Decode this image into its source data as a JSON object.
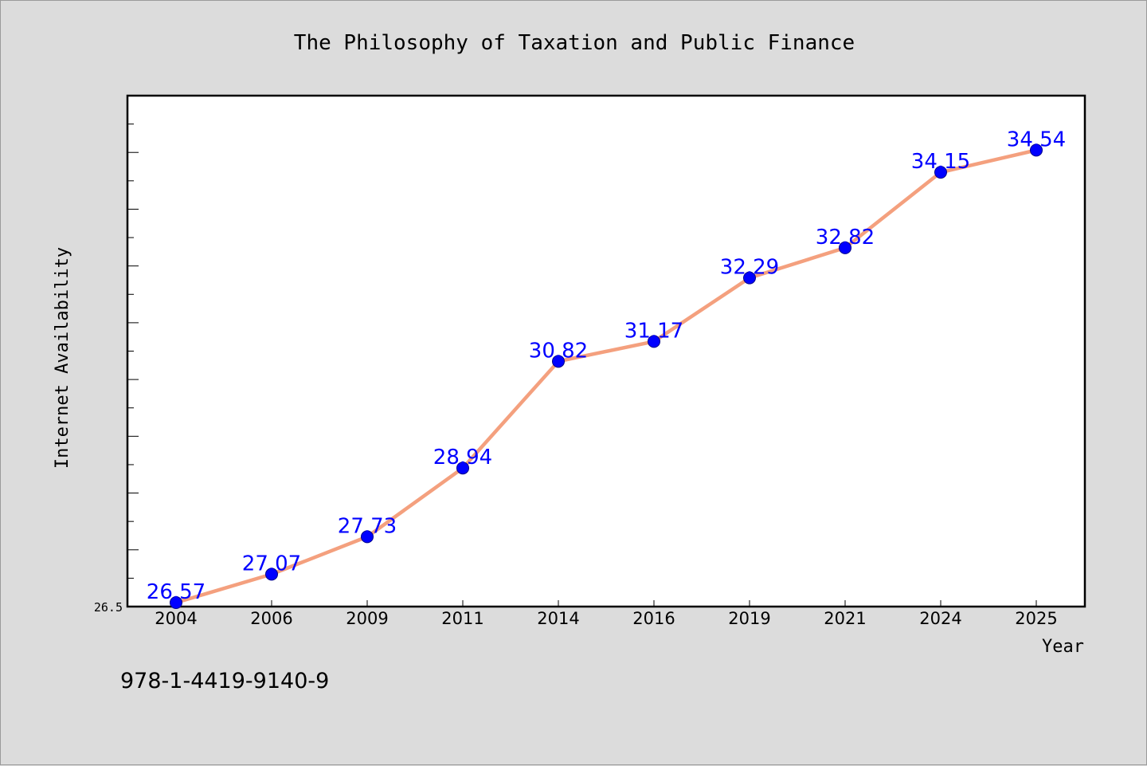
{
  "chart_data": {
    "type": "line",
    "title": "The Philosophy of Taxation and Public Finance",
    "xlabel": "Year",
    "ylabel": "Internet Availability",
    "categories": [
      "2004",
      "2006",
      "2009",
      "2011",
      "2014",
      "2016",
      "2019",
      "2021",
      "2024",
      "2025"
    ],
    "series": [
      {
        "values": [
          26.57,
          27.07,
          27.73,
          28.94,
          30.82,
          31.17,
          32.29,
          32.82,
          34.15,
          34.54
        ]
      }
    ],
    "data_labels": [
      "26.57",
      "27.07",
      "27.73",
      "28.94",
      "30.82",
      "31.17",
      "32.29",
      "32.82",
      "34.15",
      "34.54"
    ],
    "ylim": [
      26.5,
      35.5
    ],
    "ytick_labels": [
      "26.5"
    ],
    "minor_ticks_y": 18,
    "grid": false,
    "colors": {
      "line": "#f4a07e",
      "marker": "#0000ff",
      "data_label": "#0000ff",
      "plot_background": "#ffffff",
      "figure_background": "#dcdcdc"
    }
  },
  "footer": {
    "isbn": "978-1-4419-9140-9"
  }
}
